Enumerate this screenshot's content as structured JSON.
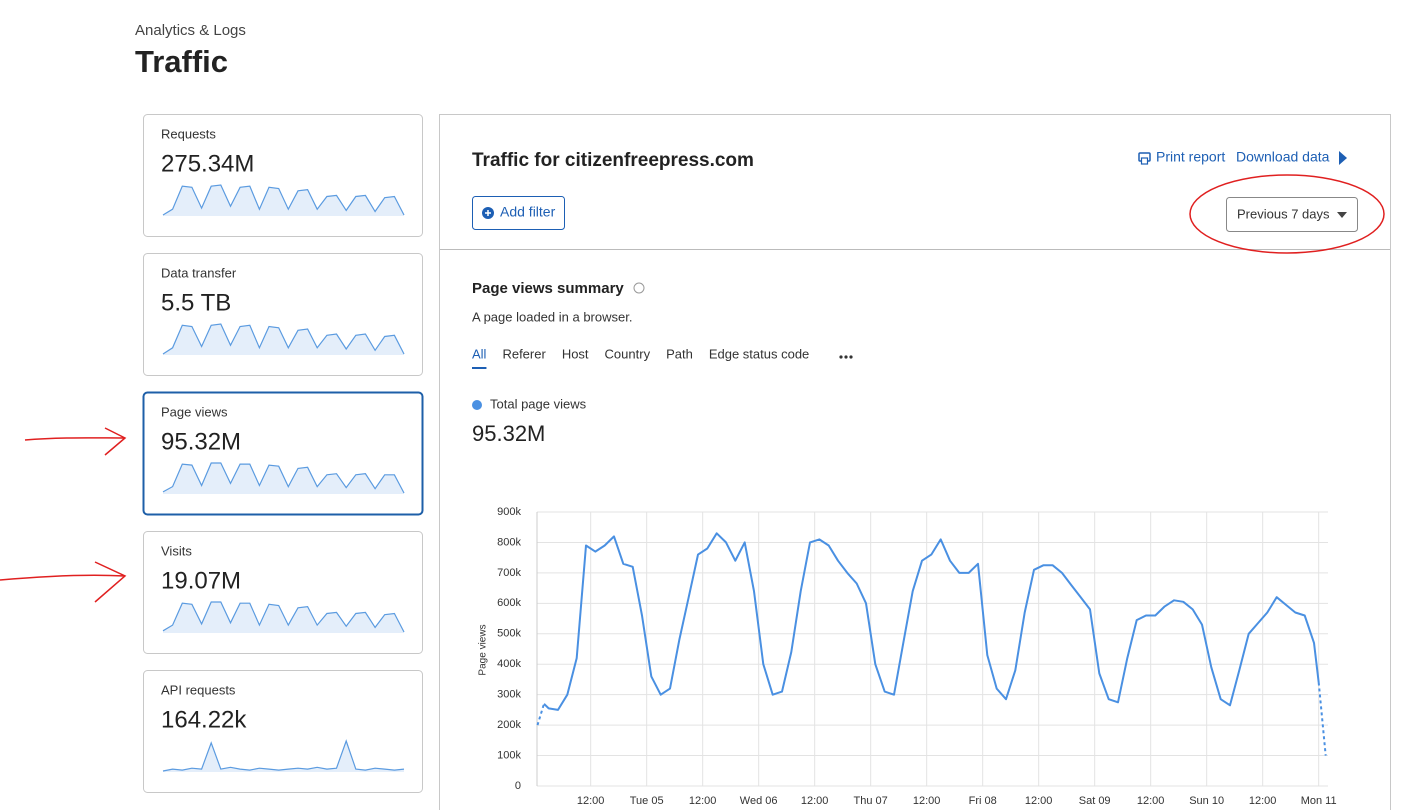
{
  "header": {
    "section": "Analytics & Logs",
    "title": "Traffic"
  },
  "cards": [
    {
      "label": "Requests",
      "value": "275.34M",
      "sparkline": [
        30,
        40,
        80,
        78,
        42,
        80,
        82,
        45,
        78,
        80,
        40,
        78,
        76,
        40,
        72,
        74,
        40,
        62,
        64,
        38,
        62,
        64,
        36,
        60,
        62,
        30
      ]
    },
    {
      "label": "Data transfer",
      "value": "5.5 TB",
      "sparkline": [
        32,
        42,
        78,
        76,
        44,
        78,
        80,
        46,
        76,
        78,
        42,
        76,
        74,
        42,
        70,
        72,
        42,
        62,
        64,
        40,
        62,
        64,
        38,
        60,
        62,
        32
      ]
    },
    {
      "label": "Page views",
      "value": "95.32M",
      "sparkline": [
        28,
        38,
        80,
        78,
        40,
        82,
        82,
        44,
        80,
        80,
        40,
        78,
        76,
        38,
        72,
        74,
        38,
        60,
        62,
        36,
        60,
        62,
        34,
        60,
        60,
        26
      ]
    },
    {
      "label": "Visits",
      "value": "19.07M",
      "sparkline": [
        30,
        40,
        78,
        76,
        42,
        80,
        80,
        44,
        78,
        78,
        40,
        76,
        74,
        40,
        70,
        72,
        40,
        60,
        62,
        38,
        60,
        62,
        36,
        58,
        60,
        28
      ]
    },
    {
      "label": "API requests",
      "value": "164.22k",
      "sparkline": [
        10,
        12,
        11,
        13,
        12,
        40,
        12,
        14,
        12,
        11,
        13,
        12,
        11,
        12,
        13,
        12,
        14,
        12,
        13,
        42,
        12,
        11,
        13,
        12,
        11,
        12
      ]
    }
  ],
  "selected_card": 2,
  "panel": {
    "title": "Traffic for citizenfreepress.com",
    "print": "Print report",
    "download": "Download data",
    "add_filter": "Add filter",
    "range": "Previous 7 days",
    "summary_title": "Page views summary",
    "summary_desc": "A page loaded in a browser.",
    "tabs": [
      "All",
      "Referer",
      "Host",
      "Country",
      "Path",
      "Edge status code"
    ],
    "active_tab": 0,
    "total": "95.32M"
  },
  "chart_data": {
    "type": "line",
    "ylabel": "Page views",
    "grid": true,
    "x": [
      0.6,
      2,
      3,
      5,
      7,
      9,
      11,
      13,
      15,
      17,
      19,
      21,
      23,
      25,
      27,
      29,
      31,
      33,
      35,
      37,
      39,
      41,
      43,
      45,
      47,
      49,
      51,
      53,
      55,
      57,
      59,
      61,
      63,
      65,
      67,
      69,
      71,
      73,
      75,
      77,
      79,
      81,
      83,
      85,
      87,
      89,
      91,
      93,
      95,
      97,
      99,
      101,
      103,
      105,
      107,
      109,
      111,
      113,
      115,
      117,
      119,
      121,
      123,
      125,
      127,
      129,
      131,
      133,
      135,
      137,
      139,
      141,
      143,
      145,
      147,
      149,
      151,
      153,
      155,
      157,
      159,
      161,
      163,
      165,
      167,
      168,
      169.5
    ],
    "series": [
      {
        "name": "Total page views",
        "color": "#4a90e2",
        "values": [
          200000,
          270000,
          255000,
          250000,
          300000,
          420000,
          790000,
          770000,
          790000,
          820000,
          730000,
          720000,
          560000,
          360000,
          300000,
          320000,
          480000,
          620000,
          760000,
          780000,
          830000,
          800000,
          740000,
          800000,
          640000,
          400000,
          300000,
          310000,
          440000,
          640000,
          800000,
          810000,
          790000,
          740000,
          700000,
          665000,
          600000,
          400000,
          310000,
          300000,
          470000,
          640000,
          740000,
          760000,
          810000,
          740000,
          700000,
          700000,
          730000,
          430000,
          320000,
          285000,
          380000,
          570000,
          710000,
          725000,
          725000,
          700000,
          660000,
          620000,
          580000,
          370000,
          285000,
          275000,
          420000,
          545000,
          560000,
          560000,
          590000,
          610000,
          605000,
          580000,
          530000,
          390000,
          285000,
          265000,
          380000,
          500000,
          535000,
          570000,
          620000,
          595000,
          570000,
          560000,
          470000,
          340000,
          100000
        ]
      }
    ],
    "xlim": [
      0.5,
      170
    ],
    "xticks": [
      {
        "value": 12,
        "label": "12:00"
      },
      {
        "value": 24,
        "label": "Tue 05"
      },
      {
        "value": 36,
        "label": "12:00"
      },
      {
        "value": 48,
        "label": "Wed 06"
      },
      {
        "value": 60,
        "label": "12:00"
      },
      {
        "value": 72,
        "label": "Thu 07"
      },
      {
        "value": 84,
        "label": "12:00"
      },
      {
        "value": 96,
        "label": "Fri 08"
      },
      {
        "value": 108,
        "label": "12:00"
      },
      {
        "value": 120,
        "label": "Sat 09"
      },
      {
        "value": 132,
        "label": "12:00"
      },
      {
        "value": 144,
        "label": "Sun 10"
      },
      {
        "value": 156,
        "label": "12:00"
      },
      {
        "value": 168,
        "label": "Mon 11"
      }
    ],
    "ylim": [
      0,
      900000
    ],
    "yticks": [
      0,
      {
        "value": 100000,
        "label": "100k"
      },
      {
        "value": 200000,
        "label": "200k"
      },
      {
        "value": 300000,
        "label": "300k"
      },
      {
        "value": 400000,
        "label": "400k"
      },
      {
        "value": 500000,
        "label": "500k"
      },
      {
        "value": 600000,
        "label": "600k"
      },
      {
        "value": 700000,
        "label": "700k"
      },
      {
        "value": 800000,
        "label": "800k"
      },
      {
        "value": 900000,
        "label": "900k"
      }
    ]
  }
}
